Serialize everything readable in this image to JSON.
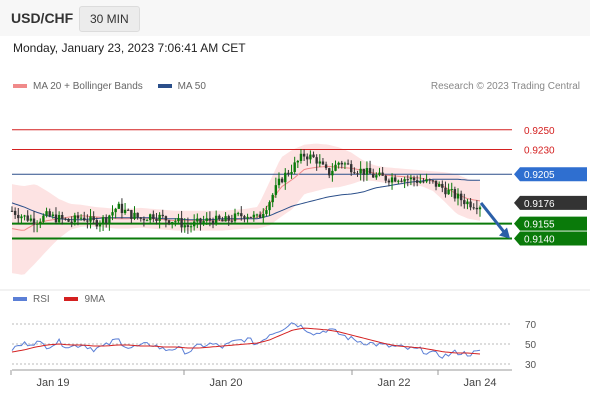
{
  "header": {
    "symbol": "USD/CHF",
    "timeframe": "30 MIN"
  },
  "datetime": "Monday, January 23, 2023 7:06:41 AM CET",
  "legend": {
    "bb": {
      "label": "MA 20 + Bollinger Bands",
      "color": "#f08a8a"
    },
    "ma50": {
      "label": "MA 50",
      "color": "#2b4f8a"
    }
  },
  "credit": "Research © 2023 Trading Central",
  "rsi_legend": {
    "rsi": {
      "label": "RSI",
      "color": "#5b7fd6"
    },
    "ma9": {
      "label": "9MA",
      "color": "#d42020"
    }
  },
  "colors": {
    "up": "#0a7a0a",
    "down": "#333333",
    "support": "#0a7a0a",
    "resistance": "#d42020",
    "pivot": "#2b4f8a",
    "current": "#333333",
    "band": "#fde3e3"
  },
  "chart_data": [
    {
      "type": "candlestick",
      "price_ylim": [
        0.9098,
        0.927
      ],
      "x_ticks": [
        "Jan 19",
        "Jan 20",
        "Jan 22",
        "Jan 24"
      ],
      "levels": [
        {
          "label": "0.9250",
          "value": 0.925,
          "kind": "resistance"
        },
        {
          "label": "0.9230",
          "value": 0.923,
          "kind": "resistance"
        },
        {
          "label": "0.9205",
          "value": 0.9205,
          "kind": "pivot"
        },
        {
          "label": "0.9176",
          "value": 0.9176,
          "kind": "current"
        },
        {
          "label": "0.9155",
          "value": 0.9155,
          "kind": "support"
        },
        {
          "label": "0.9140",
          "value": 0.914,
          "kind": "support"
        }
      ],
      "anchors_close": [
        0.9168,
        0.9162,
        0.9158,
        0.9163,
        0.916,
        0.9157,
        0.9162,
        0.9156,
        0.916,
        0.9172,
        0.9165,
        0.916,
        0.9164,
        0.916,
        0.9158,
        0.9152,
        0.9156,
        0.9159,
        0.9157,
        0.9161,
        0.9165,
        0.916,
        0.9178,
        0.92,
        0.9212,
        0.9225,
        0.922,
        0.9205,
        0.9218,
        0.9212,
        0.9208,
        0.9203,
        0.9201,
        0.9202,
        0.92,
        0.9198,
        0.9196,
        0.919,
        0.9182,
        0.9176,
        0.9174
      ],
      "anchors_ma20": [
        0.915,
        0.9148,
        0.9155,
        0.9158,
        0.916,
        0.9162,
        0.9163,
        0.9162,
        0.9161,
        0.916,
        0.916,
        0.9161,
        0.916,
        0.9159,
        0.9158,
        0.9158,
        0.9158,
        0.9158,
        0.9158,
        0.9159,
        0.916,
        0.9161,
        0.9175,
        0.9192,
        0.92,
        0.921,
        0.9212,
        0.9213,
        0.9212,
        0.9211,
        0.9209,
        0.9206,
        0.9204,
        0.9203,
        0.9202,
        0.9201,
        0.9198,
        0.9192,
        0.9185,
        0.918,
        0.9178
      ],
      "anchors_bbw": [
        0.0045,
        0.0045,
        0.004,
        0.003,
        0.002,
        0.0013,
        0.0011,
        0.001,
        0.001,
        0.001,
        0.001,
        0.001,
        0.001,
        0.001,
        0.001,
        0.001,
        0.001,
        0.001,
        0.001,
        0.001,
        0.001,
        0.0011,
        0.0022,
        0.003,
        0.003,
        0.0025,
        0.0024,
        0.0022,
        0.002,
        0.0016,
        0.001,
        0.0008,
        0.0008,
        0.0008,
        0.0008,
        0.0008,
        0.001,
        0.0015,
        0.002,
        0.002,
        0.002
      ],
      "anchors_ma50": [
        0.9176,
        0.9172,
        0.9167,
        0.9163,
        0.916,
        0.9159,
        0.9159,
        0.916,
        0.9161,
        0.9161,
        0.9161,
        0.9161,
        0.9161,
        0.916,
        0.916,
        0.9159,
        0.9159,
        0.9159,
        0.916,
        0.916,
        0.916,
        0.916,
        0.9163,
        0.9168,
        0.9173,
        0.9176,
        0.9179,
        0.9182,
        0.9184,
        0.9185,
        0.9187,
        0.9191,
        0.9193,
        0.9195,
        0.9197,
        0.9198,
        0.92,
        0.92,
        0.92,
        0.9199,
        0.9199
      ],
      "forecast": {
        "from": 0.9176,
        "to": 0.914
      }
    },
    {
      "type": "line",
      "name": "RSI",
      "ylim": [
        26,
        82
      ],
      "y_ticks": [
        70,
        50,
        30
      ],
      "anchors_rsi": [
        45,
        50,
        52,
        48,
        52,
        47,
        50,
        45,
        48,
        55,
        46,
        48,
        50,
        44,
        46,
        42,
        48,
        50,
        47,
        52,
        55,
        50,
        60,
        65,
        72,
        66,
        60,
        65,
        60,
        55,
        52,
        50,
        48,
        47,
        45,
        44,
        40,
        38,
        42,
        40,
        42
      ],
      "anchors_ma": [
        42,
        44,
        47,
        49,
        50,
        49,
        49,
        48,
        48,
        49,
        49,
        48,
        48,
        47,
        47,
        46,
        46,
        47,
        48,
        49,
        50,
        51,
        54,
        59,
        64,
        66,
        65,
        64,
        62,
        59,
        56,
        53,
        50,
        48,
        47,
        46,
        44,
        42,
        41,
        41,
        40
      ]
    }
  ]
}
